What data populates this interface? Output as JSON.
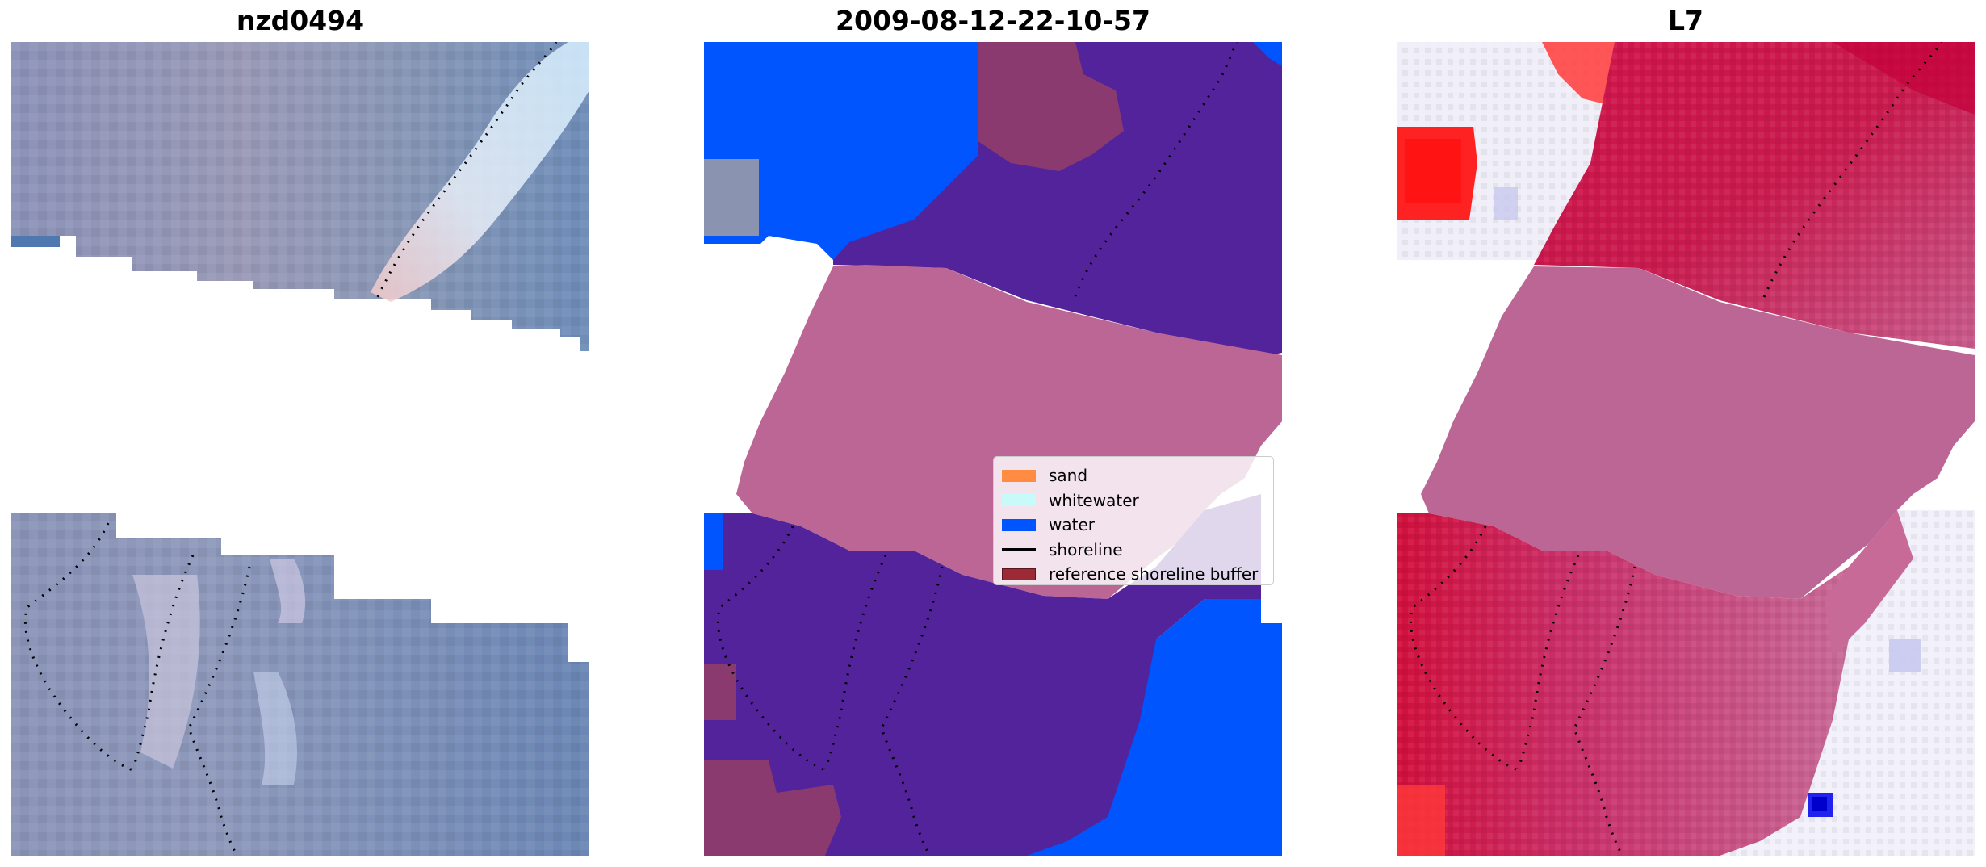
{
  "panels": [
    {
      "title": "nzd0494",
      "image": "rgb-satellite-image"
    },
    {
      "title": "2009-08-12-22-10-57",
      "image": "classified-image"
    },
    {
      "title": "L7",
      "image": "index-heatmap"
    }
  ],
  "legend": {
    "items": [
      {
        "label": "sand",
        "color": "#ff8c42",
        "kind": "patch"
      },
      {
        "label": "whitewater",
        "color": "#c8fafa",
        "kind": "patch"
      },
      {
        "label": "water",
        "color": "#0055ff",
        "kind": "patch"
      },
      {
        "label": "shoreline",
        "color": "#000000",
        "kind": "line"
      },
      {
        "label": "reference shoreline buffer",
        "color": "#9b2a36",
        "kind": "patch"
      }
    ]
  },
  "colors": {
    "nodata_stripe": "#bc6696",
    "classified_land": "#52239a",
    "buffer": "#8a3a6e",
    "heatmap_high": "#c80a3c",
    "heatmap_low": "#ffffff",
    "rgb_base": "#7d8fb4"
  }
}
